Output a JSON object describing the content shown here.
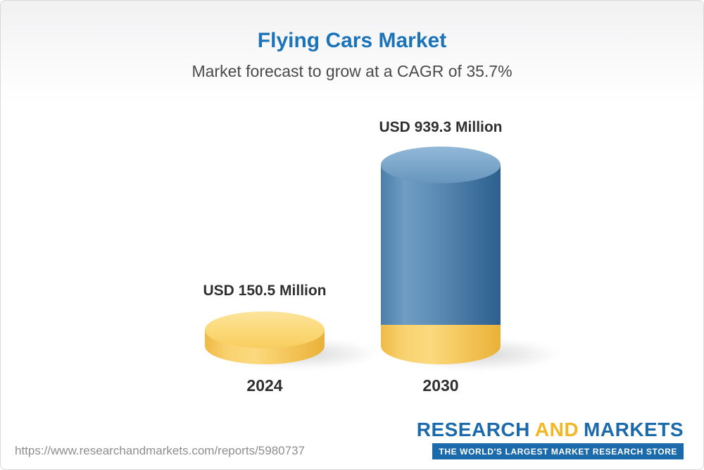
{
  "chart_data": {
    "type": "bar",
    "title": "Flying Cars Market",
    "subtitle": "Market forecast to grow at a CAGR of 35.7%",
    "unit": "USD Million",
    "categories": [
      "2024",
      "2030"
    ],
    "values": [
      150.5,
      939.3
    ],
    "value_labels": [
      "USD 150.5 Million",
      "USD 939.3 Million"
    ],
    "cagr_percent": 35.7,
    "legend": "none",
    "grid": false,
    "colors": {
      "gold_bar": "#f6ca5f",
      "blue_bar": "#41749f",
      "title_blue": "#1b74b8"
    },
    "style_note": "3D cylinders; 2030 cylinder has a gold base segment equal to the 2024 value"
  },
  "footer": {
    "url": "https://www.researchandmarkets.com/reports/5980737",
    "logo": {
      "research": "RESEARCH",
      "and": "AND",
      "markets": "MARKETS",
      "tagline": "THE WORLD'S LARGEST MARKET RESEARCH STORE"
    }
  }
}
